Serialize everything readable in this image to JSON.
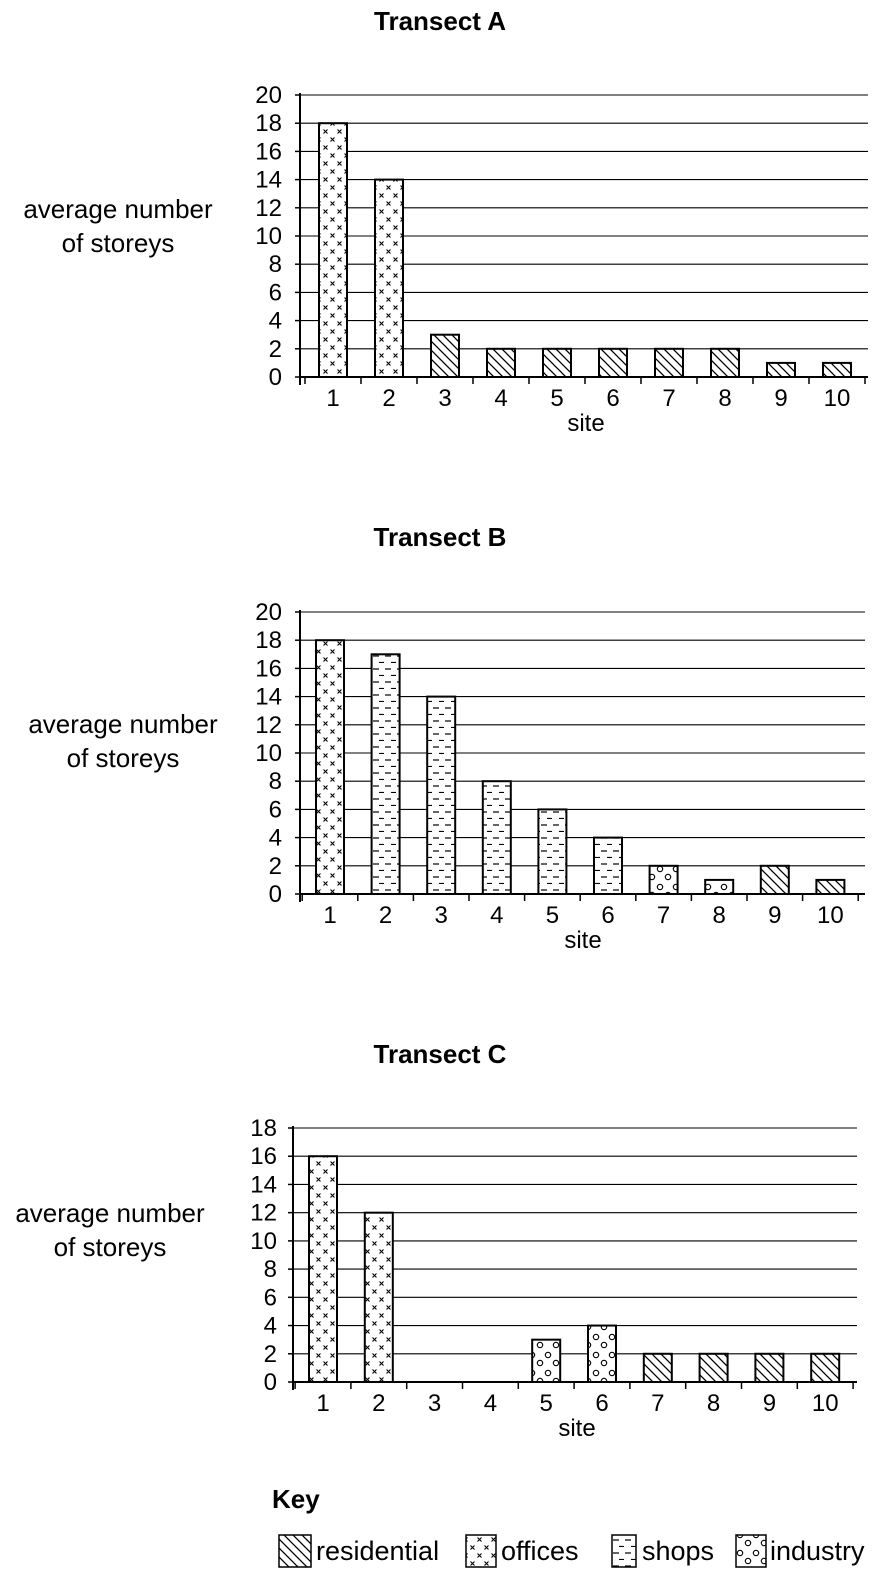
{
  "chart_data": [
    {
      "type": "bar",
      "title": "Transect A",
      "xlabel": "site",
      "ylabel": "average number of storeys",
      "categories": [
        "1",
        "2",
        "3",
        "4",
        "5",
        "6",
        "7",
        "8",
        "9",
        "10"
      ],
      "values": [
        18,
        14,
        3,
        2,
        2,
        2,
        2,
        2,
        1,
        1
      ],
      "land_use": [
        "offices",
        "offices",
        "residential",
        "residential",
        "residential",
        "residential",
        "residential",
        "residential",
        "residential",
        "residential"
      ],
      "yticks": [
        0,
        2,
        4,
        6,
        8,
        10,
        12,
        14,
        16,
        18,
        20
      ],
      "ylim": [
        0,
        20
      ],
      "grid": true
    },
    {
      "type": "bar",
      "title": "Transect B",
      "xlabel": "site",
      "ylabel": "average number of storeys",
      "categories": [
        "1",
        "2",
        "3",
        "4",
        "5",
        "6",
        "7",
        "8",
        "9",
        "10"
      ],
      "values": [
        18,
        17,
        14,
        8,
        6,
        4,
        2,
        1,
        2,
        1
      ],
      "land_use": [
        "offices",
        "shops",
        "shops",
        "shops",
        "shops",
        "shops",
        "industry",
        "industry",
        "residential",
        "residential"
      ],
      "yticks": [
        0,
        2,
        4,
        6,
        8,
        10,
        12,
        14,
        16,
        18,
        20
      ],
      "ylim": [
        0,
        20
      ],
      "grid": true
    },
    {
      "type": "bar",
      "title": "Transect C",
      "xlabel": "site",
      "ylabel": "average number of storeys",
      "categories": [
        "1",
        "2",
        "3",
        "4",
        "5",
        "6",
        "7",
        "8",
        "9",
        "10"
      ],
      "values": [
        16,
        12,
        0,
        0,
        3,
        4,
        2,
        2,
        2,
        2
      ],
      "land_use": [
        "offices",
        "offices",
        "none",
        "none",
        "industry",
        "industry",
        "residential",
        "residential",
        "residential",
        "residential"
      ],
      "yticks": [
        0,
        2,
        4,
        6,
        8,
        10,
        12,
        14,
        16,
        18
      ],
      "ylim": [
        0,
        18
      ],
      "grid": true
    }
  ],
  "key": {
    "title": "Key",
    "items": [
      {
        "id": "residential",
        "label": "residential"
      },
      {
        "id": "offices",
        "label": "offices"
      },
      {
        "id": "shops",
        "label": "shops"
      },
      {
        "id": "industry",
        "label": "industry"
      }
    ]
  }
}
